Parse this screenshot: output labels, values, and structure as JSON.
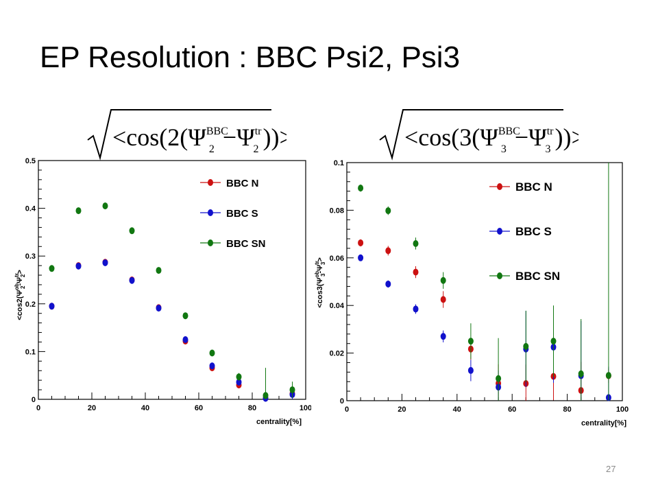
{
  "slide": {
    "title": "EP Resolution : BBC Psi2, Psi3",
    "page_number": "27"
  },
  "formulas": [
    {
      "prefix": "<cos(2(Ψ",
      "super_a": "BBC",
      "sub_a": "2",
      "minus": "−Ψ",
      "super_b": "tr",
      "sub_b": "2",
      "suffix": "))>"
    },
    {
      "prefix": "<cos(3(Ψ",
      "super_a": "BBC",
      "sub_a": "3",
      "minus": "−Ψ",
      "super_b": "tr",
      "sub_b": "3",
      "suffix": "))>"
    }
  ],
  "colors": {
    "north": "#cc1111",
    "south": "#1111cc",
    "sn": "#117711"
  },
  "chart_data": [
    {
      "type": "scatter",
      "xlabel": "centrality[%]",
      "ylabel": "<cos2(Ψ2ob-Ψ2tr)>",
      "ylabel_parts": {
        "a": "<cos2(Ψ",
        "sup1": "ob",
        "sub1": "2",
        "b": "-Ψ",
        "sup2": "tr",
        "sub2": "2",
        "c": ">"
      },
      "xlim": [
        0,
        100
      ],
      "ylim": [
        0,
        0.5
      ],
      "xticks": [
        0,
        20,
        40,
        60,
        80,
        100
      ],
      "xtick_labels": [
        "0",
        "20",
        "40",
        "60",
        "80",
        "100"
      ],
      "yticks": [
        0,
        0.1,
        0.2,
        0.3,
        0.4,
        0.5
      ],
      "ytick_labels": [
        "0",
        "0.1",
        "0.2",
        "0.3",
        "0.4",
        "0.5"
      ],
      "legend_position": "top-right",
      "series": [
        {
          "name": "BBC N",
          "color": "#cc1111",
          "x": [
            5,
            15,
            25,
            35,
            45,
            55,
            65,
            75,
            85,
            95
          ],
          "y": [
            0.195,
            0.28,
            0.287,
            0.25,
            0.192,
            0.122,
            0.066,
            0.03,
            0.003,
            0.012
          ],
          "err": [
            0.003,
            0.003,
            0.003,
            0.003,
            0.003,
            0.004,
            0.005,
            0.006,
            0.01,
            0.012
          ]
        },
        {
          "name": "BBC S",
          "color": "#1111cc",
          "x": [
            5,
            15,
            25,
            35,
            45,
            55,
            65,
            75,
            85,
            95
          ],
          "y": [
            0.195,
            0.279,
            0.286,
            0.249,
            0.191,
            0.125,
            0.07,
            0.036,
            0.002,
            0.01
          ],
          "err": [
            0.003,
            0.003,
            0.003,
            0.003,
            0.003,
            0.004,
            0.005,
            0.006,
            0.01,
            0.012
          ]
        },
        {
          "name": "BBC SN",
          "color": "#117711",
          "x": [
            5,
            15,
            25,
            35,
            45,
            55,
            65,
            75,
            85,
            95
          ],
          "y": [
            0.274,
            0.395,
            0.405,
            0.353,
            0.27,
            0.175,
            0.097,
            0.047,
            0.008,
            0.02
          ],
          "err": [
            0.003,
            0.003,
            0.003,
            0.003,
            0.003,
            0.004,
            0.005,
            0.008,
            0.058,
            0.017
          ]
        }
      ]
    },
    {
      "type": "scatter",
      "xlabel": "centrality[%]",
      "ylabel": "<cos3(Ψ3ob-Ψ3tr)>",
      "ylabel_parts": {
        "a": "<cos3(Ψ",
        "sup1": "ob",
        "sub1": "3",
        "b": "-Ψ",
        "sup2": "tr",
        "sub2": "3",
        "c": ">"
      },
      "xlim": [
        0,
        100
      ],
      "ylim": [
        0,
        0.1
      ],
      "xticks": [
        0,
        20,
        40,
        60,
        80,
        100
      ],
      "xtick_labels": [
        "0",
        "20",
        "40",
        "60",
        "80",
        "100"
      ],
      "yticks": [
        0,
        0.02,
        0.04,
        0.06,
        0.08,
        0.1
      ],
      "ytick_labels": [
        "0",
        "0.02",
        "0.04",
        "0.06",
        "0.08",
        "0.1"
      ],
      "legend_position": "top-right",
      "series": [
        {
          "name": "BBC N",
          "color": "#cc1111",
          "x": [
            5,
            15,
            25,
            35,
            45,
            55,
            65,
            75,
            85,
            95
          ],
          "y": [
            0.0663,
            0.063,
            0.054,
            0.0425,
            0.0217,
            0.0073,
            0.0072,
            0.0102,
            0.0043,
            0.0105
          ],
          "err": [
            0.0015,
            0.002,
            0.0025,
            0.0035,
            0.0045,
            0.008,
            0.008,
            0.01,
            0.012,
            0.003
          ]
        },
        {
          "name": "BBC S",
          "color": "#1111cc",
          "x": [
            5,
            15,
            25,
            35,
            45,
            55,
            65,
            75,
            85,
            95
          ],
          "y": [
            0.06,
            0.049,
            0.0385,
            0.027,
            0.0127,
            0.0057,
            0.0217,
            0.0225,
            0.0105,
            0.0013
          ],
          "err": [
            0.0012,
            0.0015,
            0.002,
            0.0025,
            0.0045,
            0.007,
            0.016,
            0.015,
            0.023,
            0.013
          ]
        },
        {
          "name": "BBC SN",
          "color": "#117711",
          "x": [
            5,
            15,
            25,
            35,
            45,
            55,
            65,
            75,
            85,
            95
          ],
          "y": [
            0.0893,
            0.0798,
            0.066,
            0.0505,
            0.025,
            0.0093,
            0.0228,
            0.025,
            0.0113,
            0.0106
          ],
          "err": [
            0.0015,
            0.0018,
            0.0025,
            0.0035,
            0.0075,
            0.017,
            0.015,
            0.015,
            0.023,
            0.09
          ]
        }
      ]
    }
  ]
}
